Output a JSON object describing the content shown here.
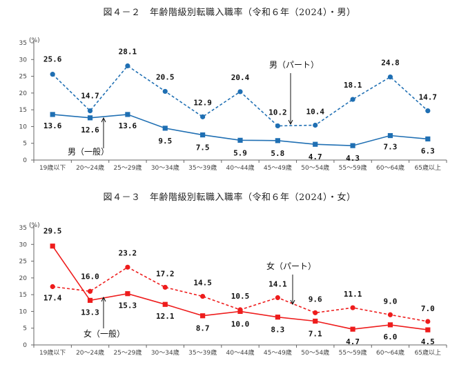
{
  "figure1": {
    "title": "図４－２　年齢階級別転職入職率（令和６年（2024）・男）"
  },
  "figure2": {
    "title": "図４－３　年齢階級別転職入職率（令和６年（2024）・女）"
  },
  "colors": {
    "male": "#1f6fb3",
    "female": "#ee1c1c"
  },
  "chart_data": [
    {
      "type": "line",
      "title": "図４－２　年齢階級別転職入職率（令和６年（2024）・男）",
      "ylabel": "(%)",
      "ylim": [
        0,
        35
      ],
      "yticks": [
        0,
        5,
        10,
        15,
        20,
        25,
        30,
        35
      ],
      "grid": false,
      "categories": [
        "19歳以下",
        "20～24歳",
        "25～29歳",
        "30～34歳",
        "35～39歳",
        "40～44歳",
        "45～49歳",
        "50～54歳",
        "55～59歳",
        "60～64歳",
        "65歳以上"
      ],
      "series": [
        {
          "name": "男（パート）",
          "style": "dashed",
          "marker": "circle",
          "values": [
            25.6,
            14.7,
            28.1,
            20.5,
            12.9,
            20.4,
            10.2,
            10.4,
            18.1,
            24.8,
            14.7
          ],
          "labels": [
            "25.6",
            "14.7",
            "28.1",
            "20.5",
            "12.9",
            "20.4",
            "10.2",
            "10.4",
            "18.1",
            "24.8",
            "14.7"
          ]
        },
        {
          "name": "男（一般）",
          "style": "solid",
          "marker": "square",
          "values": [
            13.6,
            12.6,
            13.6,
            9.5,
            7.5,
            5.9,
            5.8,
            4.7,
            4.3,
            7.3,
            6.3
          ],
          "labels": [
            "13.6",
            "12.6",
            "13.6",
            "9.5",
            "7.5",
            "5.9",
            "5.8",
            "4.7",
            "4.3",
            "7.3",
            "6.3"
          ]
        }
      ]
    },
    {
      "type": "line",
      "title": "図４－３　年齢階級別転職入職率（令和６年（2024）・女）",
      "ylabel": "(%)",
      "ylim": [
        0,
        35
      ],
      "yticks": [
        0,
        5,
        10,
        15,
        20,
        25,
        30,
        35
      ],
      "grid": false,
      "categories": [
        "19歳以下",
        "20～24歳",
        "25～29歳",
        "30～34歳",
        "35～39歳",
        "40～44歳",
        "45～49歳",
        "50～54歳",
        "55～59歳",
        "60～64歳",
        "65歳以上"
      ],
      "series": [
        {
          "name": "女（パート）",
          "style": "dashed",
          "marker": "circle",
          "values": [
            17.4,
            16.0,
            23.2,
            17.2,
            14.5,
            10.5,
            14.1,
            9.6,
            11.1,
            9.0,
            7.0
          ],
          "labels": [
            "17.4",
            "16.0",
            "23.2",
            "17.2",
            "14.5",
            "10.5",
            "14.1",
            "9.6",
            "11.1",
            "9.0",
            "7.0"
          ]
        },
        {
          "name": "女（一般）",
          "style": "solid",
          "marker": "square",
          "values": [
            29.5,
            13.3,
            15.3,
            12.1,
            8.7,
            10.0,
            8.3,
            7.1,
            4.7,
            6.0,
            4.5
          ],
          "labels": [
            "29.5",
            "13.3",
            "15.3",
            "12.1",
            "8.7",
            "10.0",
            "8.3",
            "7.1",
            "4.7",
            "6.0",
            "4.5"
          ]
        }
      ]
    }
  ]
}
